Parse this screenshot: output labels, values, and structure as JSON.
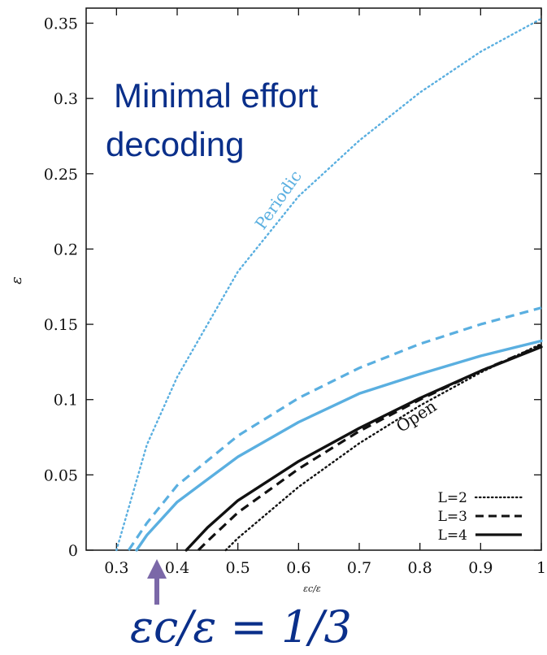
{
  "chart_data": {
    "type": "line",
    "xlabel": "εc/ε",
    "ylabel": "ε",
    "xlim": [
      0.25,
      1.0
    ],
    "ylim": [
      0,
      0.36
    ],
    "xticks": [
      "0.3",
      "0.4",
      "0.5",
      "0.6",
      "0.7",
      "0.8",
      "0.9",
      "1"
    ],
    "yticks": [
      "0",
      "0.05",
      "0.1",
      "0.15",
      "0.2",
      "0.25",
      "0.3",
      "0.35"
    ],
    "grid": false,
    "legend_position": "bottom-right",
    "legend": [
      {
        "label": "L=2",
        "style": "dotted"
      },
      {
        "label": "L=3",
        "style": "dashed"
      },
      {
        "label": "L=4",
        "style": "solid"
      }
    ],
    "series": [
      {
        "group": "Periodic",
        "L": 2,
        "style": "dotted",
        "color": "#5aafe0",
        "x": [
          0.3,
          0.35,
          0.4,
          0.5,
          0.6,
          0.7,
          0.8,
          0.9,
          1.0
        ],
        "y": [
          0.0,
          0.07,
          0.115,
          0.185,
          0.235,
          0.272,
          0.304,
          0.331,
          0.353
        ]
      },
      {
        "group": "Periodic",
        "L": 3,
        "style": "dashed",
        "color": "#5aafe0",
        "x": [
          0.32,
          0.35,
          0.4,
          0.5,
          0.6,
          0.7,
          0.8,
          0.9,
          1.0
        ],
        "y": [
          0.0,
          0.018,
          0.043,
          0.076,
          0.101,
          0.121,
          0.137,
          0.15,
          0.161
        ]
      },
      {
        "group": "Periodic",
        "L": 4,
        "style": "solid",
        "color": "#5aafe0",
        "x": [
          0.333,
          0.35,
          0.4,
          0.5,
          0.6,
          0.7,
          0.8,
          0.9,
          1.0
        ],
        "y": [
          0.0,
          0.01,
          0.032,
          0.062,
          0.085,
          0.104,
          0.117,
          0.129,
          0.139
        ]
      },
      {
        "group": "Open",
        "L": 2,
        "style": "dotted",
        "color": "#111111",
        "x": [
          0.48,
          0.5,
          0.6,
          0.7,
          0.8,
          0.9,
          1.0
        ],
        "y": [
          0.0,
          0.008,
          0.042,
          0.071,
          0.096,
          0.118,
          0.137
        ]
      },
      {
        "group": "Open",
        "L": 3,
        "style": "dashed",
        "color": "#111111",
        "x": [
          0.435,
          0.45,
          0.5,
          0.6,
          0.7,
          0.8,
          0.9,
          1.0
        ],
        "y": [
          0.0,
          0.006,
          0.025,
          0.054,
          0.079,
          0.1,
          0.119,
          0.136
        ]
      },
      {
        "group": "Open",
        "L": 4,
        "style": "solid",
        "color": "#111111",
        "x": [
          0.415,
          0.45,
          0.5,
          0.6,
          0.7,
          0.8,
          0.9,
          1.0
        ],
        "y": [
          0.0,
          0.015,
          0.033,
          0.059,
          0.081,
          0.101,
          0.119,
          0.135
        ]
      }
    ],
    "annotations": [
      {
        "text": "Periodic",
        "color": "#5aafe0"
      },
      {
        "text": "Open",
        "color": "#111111"
      }
    ]
  },
  "overlay": {
    "title_line1": "Minimal effort",
    "title_line2": "decoding",
    "equation": "εc/ε = 1/3",
    "arrow_color": "#7b68a8"
  }
}
